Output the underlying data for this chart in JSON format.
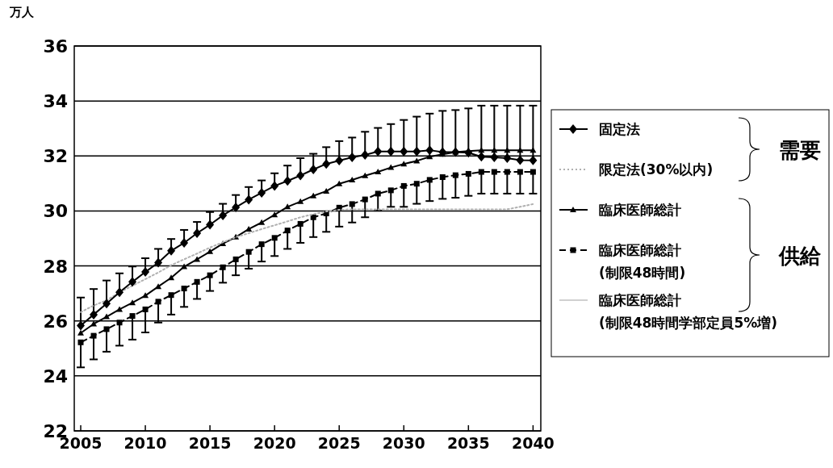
{
  "chart_data": {
    "type": "line",
    "ylabel": "万人",
    "x": [
      2005,
      2006,
      2007,
      2008,
      2009,
      2010,
      2011,
      2012,
      2013,
      2014,
      2015,
      2016,
      2017,
      2018,
      2019,
      2020,
      2021,
      2022,
      2023,
      2024,
      2025,
      2026,
      2027,
      2028,
      2029,
      2030,
      2031,
      2032,
      2033,
      2034,
      2035,
      2036,
      2037,
      2038,
      2039,
      2040
    ],
    "xlim": [
      2004.5,
      2040.6
    ],
    "xticks": [
      2005,
      2010,
      2015,
      2020,
      2025,
      2030,
      2035,
      2040
    ],
    "ylim": [
      22,
      36
    ],
    "yticks": [
      22,
      24,
      26,
      28,
      30,
      32,
      34,
      36
    ],
    "grid": "y",
    "legend": "right",
    "series": [
      {
        "name": "固定法",
        "color": "#000000",
        "marker": "diamond",
        "line_style": "solid",
        "values": [
          25.83,
          26.23,
          26.63,
          27.04,
          27.42,
          27.78,
          28.12,
          28.55,
          28.84,
          29.19,
          29.5,
          29.84,
          30.13,
          30.41,
          30.66,
          30.91,
          31.09,
          31.29,
          31.51,
          31.71,
          31.83,
          31.95,
          32.04,
          32.16,
          32.16,
          32.16,
          32.16,
          32.21,
          32.14,
          32.14,
          32.12,
          31.97,
          31.95,
          31.92,
          31.85,
          31.84
        ],
        "errors": [
          [
            25.83,
            26.85
          ],
          [
            26.23,
            27.16
          ],
          [
            26.63,
            27.47
          ],
          [
            27.04,
            27.73
          ],
          [
            27.42,
            27.98
          ],
          [
            27.78,
            28.28
          ],
          [
            28.12,
            28.62
          ],
          [
            28.55,
            28.98
          ],
          [
            28.84,
            29.31
          ],
          [
            29.19,
            29.6
          ],
          [
            29.5,
            29.96
          ],
          [
            29.84,
            30.26
          ],
          [
            30.13,
            30.58
          ],
          [
            30.41,
            30.87
          ],
          [
            30.66,
            31.11
          ],
          [
            30.91,
            31.37
          ],
          [
            31.09,
            31.65
          ],
          [
            31.29,
            31.92
          ],
          [
            31.51,
            32.08
          ],
          [
            31.71,
            32.32
          ],
          [
            31.83,
            32.54
          ],
          [
            31.95,
            32.67
          ],
          [
            32.04,
            32.88
          ],
          [
            32.16,
            33.02
          ],
          [
            32.16,
            33.16
          ],
          [
            32.16,
            33.31
          ],
          [
            32.16,
            33.43
          ],
          [
            32.21,
            33.54
          ],
          [
            32.14,
            33.64
          ],
          [
            32.14,
            33.67
          ],
          [
            32.12,
            33.73
          ],
          [
            31.97,
            33.83
          ],
          [
            31.95,
            33.83
          ],
          [
            31.92,
            33.83
          ],
          [
            31.85,
            33.83
          ],
          [
            31.84,
            33.83
          ]
        ]
      },
      {
        "name": "限定法(30%以内)",
        "color": "#b0b0b0",
        "marker": "none",
        "line_style": "dotted",
        "values": [
          26.32,
          26.56,
          26.75,
          27.04,
          27.28,
          27.52,
          27.76,
          28.03,
          28.24,
          28.45,
          28.67,
          28.86,
          29.05,
          29.19,
          29.34,
          29.48,
          29.62,
          29.77,
          29.88,
          29.98,
          30.04,
          30.06,
          30.06,
          30.06,
          30.06,
          30.06,
          30.06,
          30.06,
          30.06,
          30.06,
          30.06,
          30.06,
          30.06,
          30.06,
          30.15,
          30.25
        ]
      },
      {
        "name": "臨床医師総計",
        "color": "#000000",
        "marker": "triangle",
        "line_style": "solid",
        "values": [
          25.56,
          25.89,
          26.15,
          26.42,
          26.66,
          26.92,
          27.25,
          27.57,
          27.97,
          28.24,
          28.52,
          28.81,
          29.05,
          29.34,
          29.58,
          29.86,
          30.15,
          30.34,
          30.55,
          30.72,
          30.99,
          31.13,
          31.28,
          31.42,
          31.58,
          31.71,
          31.82,
          31.97,
          32.06,
          32.14,
          32.18,
          32.21,
          32.21,
          32.21,
          32.21,
          32.21
        ]
      },
      {
        "name": "臨床医師総計(制限48時間)",
        "color": "#000000",
        "marker": "square",
        "line_style": "dashed",
        "values": [
          25.22,
          25.46,
          25.7,
          25.94,
          26.18,
          26.42,
          26.7,
          26.94,
          27.18,
          27.42,
          27.66,
          27.95,
          28.24,
          28.51,
          28.79,
          29.02,
          29.29,
          29.53,
          29.77,
          29.91,
          30.12,
          30.25,
          30.42,
          30.63,
          30.75,
          30.91,
          30.99,
          31.13,
          31.23,
          31.3,
          31.35,
          31.42,
          31.42,
          31.42,
          31.42,
          31.42
        ],
        "errors": [
          [
            24.31,
            25.22
          ],
          [
            24.6,
            25.46
          ],
          [
            24.88,
            25.7
          ],
          [
            25.1,
            25.94
          ],
          [
            25.32,
            26.18
          ],
          [
            25.58,
            26.42
          ],
          [
            25.94,
            26.7
          ],
          [
            26.23,
            26.94
          ],
          [
            26.51,
            27.18
          ],
          [
            26.8,
            27.42
          ],
          [
            27.09,
            27.66
          ],
          [
            27.39,
            27.95
          ],
          [
            27.66,
            28.24
          ],
          [
            27.9,
            28.51
          ],
          [
            28.16,
            28.79
          ],
          [
            28.36,
            29.02
          ],
          [
            28.62,
            29.29
          ],
          [
            28.84,
            29.53
          ],
          [
            29.05,
            29.77
          ],
          [
            29.24,
            29.91
          ],
          [
            29.43,
            30.12
          ],
          [
            29.58,
            30.25
          ],
          [
            29.77,
            30.42
          ],
          [
            30.01,
            30.63
          ],
          [
            30.15,
            30.75
          ],
          [
            30.15,
            30.91
          ],
          [
            30.26,
            30.99
          ],
          [
            30.36,
            31.13
          ],
          [
            30.44,
            31.23
          ],
          [
            30.48,
            31.3
          ],
          [
            30.55,
            31.35
          ],
          [
            30.63,
            31.42
          ],
          [
            30.63,
            31.42
          ],
          [
            30.63,
            31.42
          ],
          [
            30.63,
            31.42
          ],
          [
            30.63,
            31.42
          ]
        ]
      },
      {
        "name": "臨床医師総計(制限48時間学部定員5%増)",
        "color": "#d0d0d0",
        "marker": "none",
        "line_style": "solid",
        "values": [
          null,
          null,
          null,
          null,
          null,
          null,
          null,
          null,
          null,
          null,
          null,
          null,
          null,
          null,
          null,
          null,
          null,
          null,
          null,
          null,
          null,
          null,
          null,
          null,
          null,
          null,
          null,
          null,
          null,
          null,
          null,
          null,
          null,
          null,
          null,
          null
        ]
      }
    ],
    "annotations": [
      "需要",
      "供給"
    ]
  }
}
